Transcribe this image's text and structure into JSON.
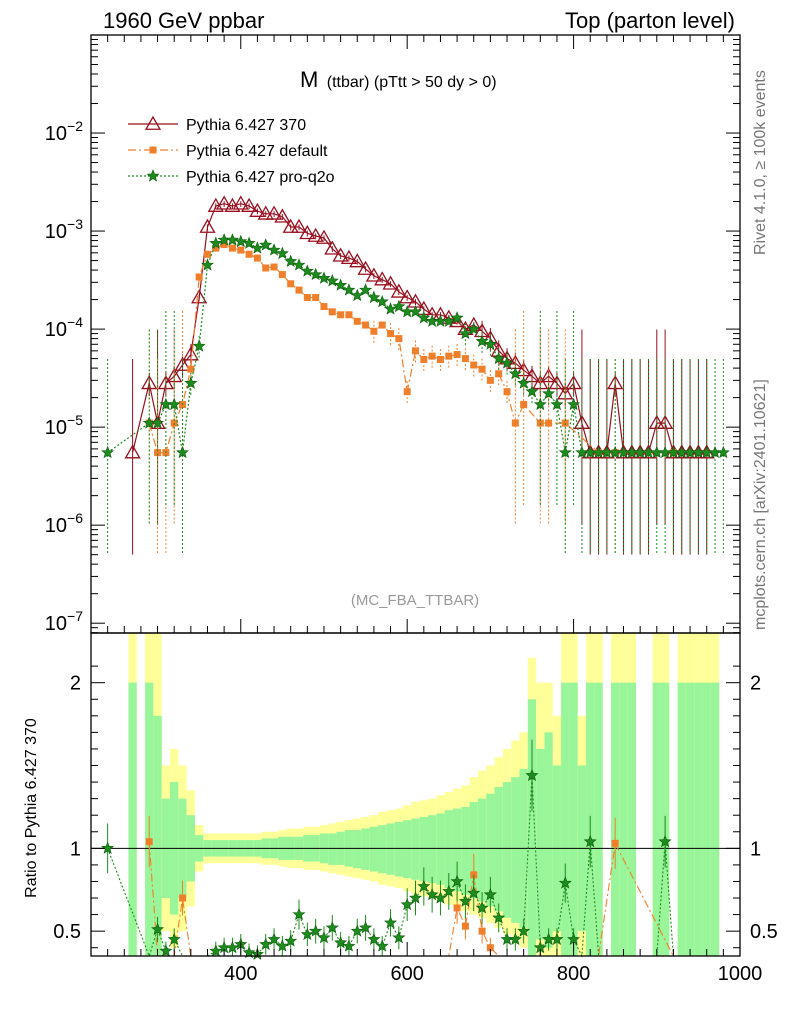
{
  "header": {
    "left": "1960 GeV ppbar",
    "right": "Top (parton level)"
  },
  "side_labels": {
    "rivet": "Rivet 4.1.0, ≥ 100k events",
    "mcplots": "mcplots.cern.ch [arXiv:2401.10621]"
  },
  "chart_data": {
    "type": "line",
    "title": "M(ttbar) (pTtt > 50 dy > 0)",
    "title_main": "M",
    "title_sub": "(ttbar) (pTtt > 50 dy > 0)",
    "analysis_tag": "(MC_FBA_TTBAR)",
    "xlabel": "",
    "ylabel": "",
    "ratio_ylabel": "Ratio to Pythia 6.427 370",
    "xlim": [
      220,
      1000
    ],
    "ylim_log10": [
      -7.1,
      -1.0
    ],
    "ratio_ylim": [
      0.35,
      2.3
    ],
    "x_ticks": [
      400,
      600,
      800,
      1000
    ],
    "x_tick_labels": [
      "400",
      "600",
      "800",
      "1000"
    ],
    "y_ticks_log10": [
      -7,
      -6,
      -5,
      -4,
      -3,
      -2
    ],
    "ratio_ticks": [
      0.5,
      1,
      2
    ],
    "ratio_tick_labels": [
      "0.5",
      "1",
      "2"
    ],
    "legend": [
      {
        "name": "Pythia 6.427 370",
        "color": "#990f1f",
        "marker": "triangle"
      },
      {
        "name": "Pythia 6.427 default",
        "color": "#f07f2c",
        "marker": "square"
      },
      {
        "name": "Pythia 6.427 pro-q2o",
        "color": "#1e8b1e",
        "marker": "star"
      }
    ],
    "series": [
      {
        "name": "Pythia 6.427 370",
        "x": [
          270,
          290,
          300,
          310,
          320,
          330,
          340,
          350,
          360,
          370,
          380,
          390,
          400,
          410,
          420,
          430,
          440,
          450,
          460,
          470,
          480,
          490,
          500,
          510,
          520,
          530,
          540,
          550,
          560,
          570,
          580,
          590,
          600,
          610,
          620,
          630,
          640,
          650,
          660,
          670,
          680,
          690,
          700,
          710,
          720,
          730,
          740,
          750,
          760,
          770,
          780,
          790,
          800,
          810,
          820,
          830,
          840,
          850,
          860,
          870,
          880,
          890,
          900,
          910,
          920,
          930,
          940,
          950,
          960
        ],
        "values": [
          5.5e-06,
          2.8e-05,
          1.1e-05,
          2.8e-05,
          3.3e-05,
          4.3e-05,
          5.5e-05,
          0.00021,
          0.0011,
          0.0018,
          0.0019,
          0.0018,
          0.0019,
          0.0018,
          0.0016,
          0.0015,
          0.0015,
          0.0014,
          0.0011,
          0.0011,
          0.00095,
          0.00089,
          0.00085,
          0.00066,
          0.00056,
          0.00053,
          0.00049,
          0.00041,
          0.00035,
          0.00032,
          0.00029,
          0.00024,
          0.00021,
          0.00019,
          0.00016,
          0.00014,
          0.00014,
          0.00013,
          0.00012,
          0.0001,
          0.00011,
          9.5e-05,
          8e-05,
          6e-05,
          5e-05,
          4.5e-05,
          3.8e-05,
          3.3e-05,
          2.8e-05,
          3.3e-05,
          2.8e-05,
          2.2e-05,
          2.8e-05,
          1.1e-05,
          5.5e-06,
          5.5e-06,
          5.5e-06,
          2.8e-05,
          5.5e-06,
          5.5e-06,
          5.5e-06,
          5.5e-06,
          1.1e-05,
          1.1e-05,
          5.5e-06,
          5.5e-06,
          5.5e-06,
          5.5e-06,
          5.5e-06
        ],
        "ratio": [
          1,
          1,
          1,
          1,
          1,
          1,
          1,
          1,
          1,
          1,
          1,
          1,
          1,
          1,
          1,
          1,
          1,
          1,
          1,
          1,
          1,
          1,
          1,
          1,
          1,
          1,
          1,
          1,
          1,
          1,
          1,
          1,
          1,
          1,
          1,
          1,
          1,
          1,
          1,
          1,
          1,
          1,
          1,
          1,
          1,
          1,
          1,
          1,
          1,
          1,
          1,
          1,
          1,
          1,
          1,
          1,
          1,
          1,
          1,
          1,
          1,
          1,
          1,
          1,
          1,
          1,
          1,
          1,
          1
        ]
      },
      {
        "name": "Pythia 6.427 default",
        "x": [
          290,
          300,
          310,
          320,
          330,
          340,
          350,
          360,
          370,
          380,
          390,
          400,
          410,
          420,
          430,
          440,
          450,
          460,
          470,
          480,
          490,
          500,
          510,
          520,
          530,
          540,
          550,
          560,
          570,
          580,
          590,
          600,
          610,
          620,
          630,
          640,
          650,
          660,
          670,
          680,
          690,
          700,
          710,
          720,
          730,
          740,
          760,
          770,
          790,
          830,
          850,
          920
        ],
        "values": [
          1.1e-05,
          5.5e-06,
          5.5e-06,
          1.1e-05,
          1.7e-05,
          3.9e-05,
          0.00034,
          0.00058,
          0.00067,
          0.00073,
          0.00067,
          0.00064,
          0.00058,
          0.00053,
          0.00042,
          0.00043,
          0.00036,
          0.00029,
          0.00025,
          0.00021,
          0.00021,
          0.00017,
          0.00015,
          0.00014,
          0.00014,
          0.00012,
          0.00011,
          9.5e-05,
          0.00011,
          9e-05,
          8e-05,
          2.3e-05,
          6e-05,
          4.9e-05,
          5.3e-05,
          4.9e-05,
          5.3e-05,
          5.5e-05,
          5e-05,
          4.3e-05,
          3.9e-05,
          3e-05,
          3.5e-05,
          2.3e-05,
          1.1e-05,
          1.7e-05,
          1.1e-05,
          1.1e-05,
          1.1e-05,
          5.5e-06,
          5.5e-06,
          5.5e-06
        ],
        "ratio": [
          1.04,
          0.35,
          0.35,
          0.35,
          0.7,
          0.35,
          0.35,
          0.35,
          0.35,
          0.35,
          0.35,
          0.35,
          0.35,
          0.35,
          0.35,
          0.35,
          0.35,
          0.35,
          0.35,
          0.35,
          0.35,
          0.35,
          0.35,
          0.35,
          0.35,
          0.35,
          0.35,
          0.35,
          0.35,
          0.35,
          0.35,
          0.35,
          0.35,
          0.35,
          0.35,
          0.35,
          0.35,
          0.64,
          0.53,
          0.84,
          0.5,
          0.4,
          0.35,
          0.35,
          0.35,
          0.35,
          0.35,
          0.35,
          0.35,
          0.35,
          1.03,
          0.35
        ]
      },
      {
        "name": "Pythia 6.427 pro-q2o",
        "x": [
          240,
          290,
          300,
          310,
          320,
          330,
          340,
          350,
          360,
          370,
          380,
          390,
          400,
          410,
          420,
          430,
          440,
          450,
          460,
          470,
          480,
          490,
          500,
          510,
          520,
          530,
          540,
          550,
          560,
          570,
          580,
          590,
          600,
          610,
          620,
          630,
          640,
          650,
          660,
          670,
          680,
          690,
          700,
          710,
          720,
          730,
          740,
          750,
          760,
          770,
          780,
          790,
          800,
          810,
          820,
          830,
          840,
          850,
          860,
          870,
          880,
          890,
          900,
          910,
          920,
          930,
          940,
          950,
          960,
          970,
          980
        ],
        "values": [
          5.5e-06,
          1.1e-05,
          1.1e-05,
          1.7e-05,
          1.7e-05,
          5.5e-06,
          2.8e-05,
          6.7e-05,
          0.00045,
          0.00075,
          0.00081,
          0.00081,
          0.00078,
          0.00075,
          0.00067,
          0.00072,
          0.00064,
          0.00059,
          0.00049,
          0.00045,
          0.00039,
          0.00036,
          0.00033,
          0.00031,
          0.00028,
          0.00025,
          0.00022,
          0.00025,
          0.00021,
          0.00019,
          0.00016,
          0.00017,
          0.00015,
          0.00015,
          0.00013,
          0.00012,
          0.00012,
          0.00012,
          0.00013,
          9e-05,
          0.0001,
          7.5e-05,
          7e-05,
          5e-05,
          4.5e-05,
          3.5e-05,
          2.8e-05,
          2.3e-05,
          1.7e-05,
          2.2e-05,
          1.7e-05,
          5.5e-06,
          1.7e-05,
          5.5e-06,
          5.5e-06,
          5.5e-06,
          5.5e-06,
          5.5e-06,
          5.5e-06,
          5.5e-06,
          5.5e-06,
          5.5e-06,
          5.5e-06,
          5.5e-06,
          5.5e-06,
          5.5e-06,
          5.5e-06,
          5.5e-06,
          5.5e-06,
          5.5e-06,
          5.5e-06
        ],
        "ratio": [
          1,
          0.35,
          0.51,
          0.38,
          0.45,
          0.35,
          0.35,
          0.35,
          0.35,
          0.38,
          0.4,
          0.4,
          0.42,
          0.37,
          0.36,
          0.42,
          0.45,
          0.41,
          0.44,
          0.6,
          0.48,
          0.5,
          0.46,
          0.52,
          0.43,
          0.41,
          0.5,
          0.52,
          0.45,
          0.41,
          0.55,
          0.46,
          0.66,
          0.7,
          0.77,
          0.72,
          0.7,
          0.74,
          0.8,
          0.68,
          0.73,
          0.64,
          0.72,
          0.58,
          0.45,
          0.45,
          0.5,
          1.44,
          0.4,
          0.45,
          0.45,
          0.79,
          0.45,
          0.35,
          1.04,
          0.35,
          0.35,
          0.35,
          0.35,
          0.35,
          0.35,
          0.35,
          0.35,
          1.04,
          0.35,
          0.35,
          0.35,
          0.35,
          0.35,
          0.35,
          0.35
        ]
      }
    ],
    "uncertainty_band": {
      "x": [
        270,
        280,
        290,
        300,
        310,
        320,
        330,
        340,
        350,
        360,
        370,
        380,
        390,
        400,
        410,
        420,
        430,
        440,
        450,
        460,
        470,
        480,
        490,
        500,
        510,
        520,
        530,
        540,
        550,
        560,
        570,
        580,
        590,
        600,
        610,
        620,
        630,
        640,
        650,
        660,
        670,
        680,
        690,
        700,
        710,
        720,
        730,
        740,
        750,
        760,
        770,
        780,
        790,
        800,
        810,
        820,
        830,
        840,
        850,
        860,
        870,
        880,
        890,
        900,
        910,
        920,
        930,
        940,
        950,
        960,
        970
      ],
      "yellow_up": [
        2.3,
        0,
        2.3,
        2.3,
        1.5,
        1.6,
        1.5,
        1.35,
        1.14,
        1.09,
        1.09,
        1.09,
        1.09,
        1.09,
        1.09,
        1.09,
        1.1,
        1.1,
        1.11,
        1.12,
        1.12,
        1.13,
        1.13,
        1.14,
        1.15,
        1.16,
        1.17,
        1.18,
        1.19,
        1.2,
        1.22,
        1.23,
        1.24,
        1.26,
        1.28,
        1.29,
        1.3,
        1.32,
        1.34,
        1.36,
        1.38,
        1.43,
        1.47,
        1.5,
        1.55,
        1.6,
        1.65,
        1.7,
        2.15,
        2.0,
        2.0,
        1.8,
        2.3,
        2.3,
        1.8,
        2.3,
        2.3,
        0,
        2.3,
        2.3,
        2.3,
        0,
        0,
        2.3,
        2.3,
        0,
        2.3,
        2.3,
        2.3,
        2.3,
        2.3
      ],
      "green_up": [
        2.0,
        0,
        2.0,
        1.8,
        1.3,
        1.4,
        1.3,
        1.2,
        1.08,
        1.05,
        1.05,
        1.05,
        1.05,
        1.05,
        1.05,
        1.05,
        1.06,
        1.06,
        1.07,
        1.07,
        1.07,
        1.08,
        1.08,
        1.09,
        1.09,
        1.1,
        1.11,
        1.11,
        1.12,
        1.13,
        1.14,
        1.15,
        1.16,
        1.17,
        1.18,
        1.19,
        1.2,
        1.21,
        1.23,
        1.24,
        1.25,
        1.28,
        1.3,
        1.33,
        1.37,
        1.4,
        1.43,
        1.48,
        1.9,
        1.6,
        1.7,
        1.5,
        2.0,
        2.0,
        1.5,
        2.0,
        2.0,
        0,
        2.0,
        2.0,
        2.0,
        0,
        0,
        2.0,
        2.0,
        0,
        2.0,
        2.0,
        2.0,
        2.0,
        2.0
      ],
      "green_lo": [
        0.35,
        0,
        0.35,
        0.35,
        0.7,
        0.6,
        0.7,
        0.8,
        0.92,
        0.95,
        0.95,
        0.95,
        0.95,
        0.95,
        0.95,
        0.95,
        0.94,
        0.94,
        0.93,
        0.93,
        0.93,
        0.92,
        0.92,
        0.91,
        0.9,
        0.9,
        0.89,
        0.88,
        0.87,
        0.86,
        0.85,
        0.84,
        0.83,
        0.82,
        0.81,
        0.8,
        0.79,
        0.78,
        0.76,
        0.74,
        0.72,
        0.7,
        0.68,
        0.65,
        0.62,
        0.58,
        0.55,
        0.52,
        0.35,
        0.45,
        0.4,
        0.5,
        0.35,
        0.35,
        0.5,
        0.35,
        0.35,
        0,
        0.35,
        0.35,
        0.35,
        0,
        0,
        0.35,
        0.35,
        0,
        0.35,
        0.35,
        0.35,
        0.35,
        0.35
      ],
      "yellow_lo": [
        0.35,
        0,
        0.35,
        0.35,
        0.5,
        0.4,
        0.5,
        0.65,
        0.86,
        0.91,
        0.91,
        0.91,
        0.91,
        0.91,
        0.91,
        0.91,
        0.9,
        0.9,
        0.89,
        0.88,
        0.88,
        0.87,
        0.87,
        0.86,
        0.85,
        0.84,
        0.83,
        0.82,
        0.81,
        0.8,
        0.78,
        0.77,
        0.76,
        0.74,
        0.72,
        0.71,
        0.7,
        0.68,
        0.66,
        0.64,
        0.62,
        0.6,
        0.58,
        0.55,
        0.52,
        0.48,
        0.45,
        0.4,
        0.35,
        0.35,
        0.35,
        0.35,
        0.35,
        0.35,
        0.35,
        0.35,
        0.35,
        0,
        0.35,
        0.35,
        0.35,
        0,
        0,
        0.35,
        0.35,
        0,
        0.35,
        0.35,
        0.35,
        0.35,
        0.35
      ]
    }
  }
}
